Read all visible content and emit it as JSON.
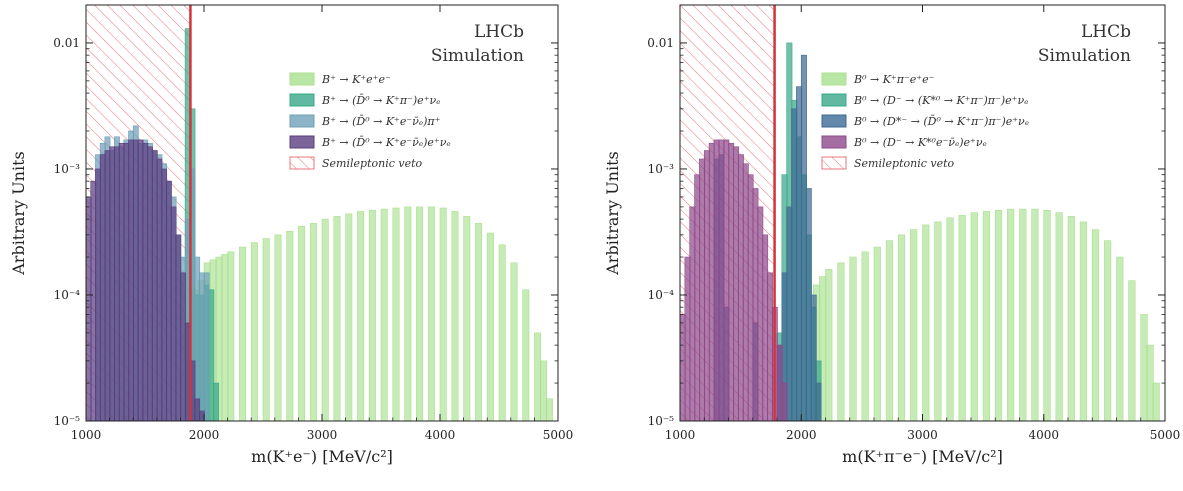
{
  "chart_data": [
    {
      "type": "bar",
      "ylabel": "Arbitrary Units",
      "xlabel": "m(K⁺e⁻) [MeV/c²]",
      "yscale": "log",
      "xlim": [
        1000,
        5000
      ],
      "ylim": [
        1e-05,
        0.02
      ],
      "grid": false,
      "legend_position": "top-right",
      "annotation_lines": [
        "LHCb",
        "Simulation"
      ],
      "xticks": [
        1000,
        2000,
        3000,
        4000,
        5000
      ],
      "yticks": [
        {
          "value": 1e-05,
          "label": "10⁻⁵"
        },
        {
          "value": 0.0001,
          "label": "10⁻⁴"
        },
        {
          "value": 0.001,
          "label": "10⁻³"
        },
        {
          "value": 0.01,
          "label": "0.01"
        }
      ],
      "veto": {
        "label": "Semileptonic veto",
        "x_range": [
          1000,
          1885
        ],
        "color": "#e8767a"
      },
      "series": [
        {
          "name": "B⁺ → K⁺e⁺e⁻",
          "color": "#a9e08f",
          "bins": [
            [
              1900,
              0.00011
            ],
            [
              1950,
              0.00013
            ],
            [
              2000,
              0.00018
            ],
            [
              2050,
              0.00019
            ],
            [
              2100,
              0.0002
            ],
            [
              2150,
              0.00021
            ],
            [
              2200,
              0.00022
            ],
            [
              2300,
              0.00024
            ],
            [
              2400,
              0.00026
            ],
            [
              2500,
              0.00028
            ],
            [
              2600,
              0.0003
            ],
            [
              2700,
              0.00032
            ],
            [
              2800,
              0.00035
            ],
            [
              2900,
              0.00037
            ],
            [
              3000,
              0.0004
            ],
            [
              3100,
              0.00042
            ],
            [
              3200,
              0.00044
            ],
            [
              3300,
              0.00046
            ],
            [
              3400,
              0.00047
            ],
            [
              3500,
              0.00048
            ],
            [
              3600,
              0.00049
            ],
            [
              3700,
              0.0005
            ],
            [
              3800,
              0.0005
            ],
            [
              3900,
              0.0005
            ],
            [
              4000,
              0.00049
            ],
            [
              4100,
              0.00046
            ],
            [
              4200,
              0.00042
            ],
            [
              4300,
              0.00037
            ],
            [
              4400,
              0.00031
            ],
            [
              4500,
              0.00025
            ],
            [
              4600,
              0.00018
            ],
            [
              4700,
              0.00011
            ],
            [
              4800,
              5e-05
            ],
            [
              4850,
              3e-05
            ],
            [
              4900,
              1.5e-05
            ]
          ]
        },
        {
          "name": "B⁺ → (D̄⁰ → K⁺π⁻)e⁺νₑ",
          "color": "#3aa889",
          "bins": [
            [
              1840,
              0.013
            ],
            [
              1880,
              0.003
            ],
            [
              1920,
              0.0001
            ],
            [
              1960,
              0.0001
            ],
            [
              2000,
              0.00012
            ],
            [
              2040,
              0.00011
            ],
            [
              2080,
              2e-05
            ]
          ]
        },
        {
          "name": "B⁺ → (D̄⁰ → K⁺e⁻ν̄ₑ)π⁺",
          "color": "#6fa0b8",
          "bins": [
            [
              1080,
              0.0013
            ],
            [
              1120,
              0.0016
            ],
            [
              1160,
              0.0018
            ],
            [
              1200,
              0.0014
            ],
            [
              1240,
              0.0018
            ],
            [
              1280,
              0.0015
            ],
            [
              1320,
              0.0017
            ],
            [
              1360,
              0.002
            ],
            [
              1400,
              0.0022
            ],
            [
              1440,
              0.0016
            ],
            [
              1480,
              0.0017
            ],
            [
              1520,
              0.0016
            ],
            [
              1560,
              0.0014
            ],
            [
              1600,
              0.0013
            ],
            [
              1640,
              0.0011
            ],
            [
              1680,
              0.0008
            ],
            [
              1720,
              0.0006
            ],
            [
              1760,
              0.0003
            ],
            [
              1800,
              0.0002
            ],
            [
              1840,
              0.0004
            ],
            [
              1880,
              0.001
            ],
            [
              1920,
              0.0002
            ],
            [
              1960,
              0.00015
            ],
            [
              2000,
              0.00015
            ]
          ]
        },
        {
          "name": "B⁺ → (D̄⁰ → K⁺e⁻ν̄ₑ)e⁺νₑ",
          "color": "#5a3f80",
          "bins": [
            [
              1000,
              0.0006
            ],
            [
              1040,
              0.0008
            ],
            [
              1080,
              0.001
            ],
            [
              1120,
              0.0013
            ],
            [
              1160,
              0.0014
            ],
            [
              1200,
              0.0015
            ],
            [
              1240,
              0.0015
            ],
            [
              1280,
              0.0016
            ],
            [
              1320,
              0.0016
            ],
            [
              1360,
              0.0017
            ],
            [
              1400,
              0.0017
            ],
            [
              1440,
              0.0017
            ],
            [
              1480,
              0.0016
            ],
            [
              1520,
              0.0015
            ],
            [
              1560,
              0.0014
            ],
            [
              1600,
              0.0012
            ],
            [
              1640,
              0.001
            ],
            [
              1680,
              0.0008
            ],
            [
              1720,
              0.0005
            ],
            [
              1760,
              0.0003
            ],
            [
              1800,
              0.00015
            ],
            [
              1840,
              6e-05
            ],
            [
              1880,
              3e-05
            ],
            [
              1920,
              1.5e-05
            ],
            [
              1960,
              1.2e-05
            ],
            [
              2000,
              1e-05
            ],
            [
              2040,
              1e-05
            ]
          ]
        }
      ]
    },
    {
      "type": "bar",
      "ylabel": "Arbitrary Units",
      "xlabel": "m(K⁺π⁻e⁻) [MeV/c²]",
      "yscale": "log",
      "xlim": [
        1000,
        5000
      ],
      "ylim": [
        1e-05,
        0.02
      ],
      "grid": false,
      "legend_position": "top-right",
      "annotation_lines": [
        "LHCb",
        "Simulation"
      ],
      "xticks": [
        1000,
        2000,
        3000,
        4000,
        5000
      ],
      "yticks": [
        {
          "value": 1e-05,
          "label": "10⁻⁵"
        },
        {
          "value": 0.0001,
          "label": "10⁻⁴"
        },
        {
          "value": 0.001,
          "label": "10⁻³"
        },
        {
          "value": 0.01,
          "label": "0.01"
        }
      ],
      "veto": {
        "label": "Semileptonic veto",
        "x_range": [
          1000,
          1780
        ],
        "color": "#e8767a"
      },
      "series": [
        {
          "name": "B⁰ → K⁺π⁻e⁺e⁻",
          "color": "#a9e08f",
          "bins": [
            [
              2100,
              0.00012
            ],
            [
              2150,
              0.00014
            ],
            [
              2200,
              0.00016
            ],
            [
              2300,
              0.00018
            ],
            [
              2400,
              0.0002
            ],
            [
              2500,
              0.00022
            ],
            [
              2600,
              0.00024
            ],
            [
              2700,
              0.00027
            ],
            [
              2800,
              0.0003
            ],
            [
              2900,
              0.00033
            ],
            [
              3000,
              0.00036
            ],
            [
              3100,
              0.00038
            ],
            [
              3200,
              0.00041
            ],
            [
              3300,
              0.00043
            ],
            [
              3400,
              0.00045
            ],
            [
              3500,
              0.00046
            ],
            [
              3600,
              0.00047
            ],
            [
              3700,
              0.00048
            ],
            [
              3800,
              0.00048
            ],
            [
              3900,
              0.00048
            ],
            [
              4000,
              0.00047
            ],
            [
              4100,
              0.00045
            ],
            [
              4200,
              0.00042
            ],
            [
              4300,
              0.00038
            ],
            [
              4400,
              0.00033
            ],
            [
              4500,
              0.00027
            ],
            [
              4600,
              0.0002
            ],
            [
              4700,
              0.00013
            ],
            [
              4800,
              7e-05
            ],
            [
              4850,
              4e-05
            ],
            [
              4900,
              2e-05
            ]
          ]
        },
        {
          "name": "B⁰ → (D⁻ → (K*⁰ → K⁺π⁻)π⁻)e⁺νₑ",
          "color": "#3aa889",
          "bins": [
            [
              1800,
              5e-05
            ],
            [
              1840,
              0.0009
            ],
            [
              1880,
              0.01
            ],
            [
              1920,
              0.0035
            ],
            [
              1960,
              0.0018
            ],
            [
              2000,
              0.0009
            ],
            [
              2040,
              0.0003
            ],
            [
              2080,
              8e-05
            ],
            [
              2120,
              3e-05
            ],
            [
              2160,
              1e-05
            ]
          ]
        },
        {
          "name": "B⁰ → (D*⁻ → (D̄⁰ → K⁺π⁻)π⁻)e⁺νₑ",
          "color": "#3d6a93",
          "bins": [
            [
              1280,
              0.0012
            ],
            [
              1320,
              0.0013
            ],
            [
              1360,
              8e-05
            ],
            [
              1600,
              6e-05
            ],
            [
              1800,
              4e-05
            ],
            [
              1840,
              0.00015
            ],
            [
              1880,
              0.0005
            ],
            [
              1920,
              0.003
            ],
            [
              1960,
              0.0045
            ],
            [
              2000,
              0.008
            ],
            [
              2040,
              0.0007
            ],
            [
              2080,
              0.0001
            ],
            [
              2120,
              2e-05
            ]
          ]
        },
        {
          "name": "B⁰ → (D⁻ → K*⁰e⁻ν̄ₑ)e⁺νₑ",
          "color": "#8f4a8b",
          "bins": [
            [
              1000,
              7e-05
            ],
            [
              1040,
              0.0002
            ],
            [
              1080,
              0.0005
            ],
            [
              1120,
              0.0009
            ],
            [
              1160,
              0.0012
            ],
            [
              1200,
              0.0014
            ],
            [
              1240,
              0.0016
            ],
            [
              1280,
              0.0017
            ],
            [
              1320,
              0.0017
            ],
            [
              1360,
              0.0017
            ],
            [
              1400,
              0.0016
            ],
            [
              1440,
              0.0015
            ],
            [
              1480,
              0.0013
            ],
            [
              1520,
              0.0011
            ],
            [
              1560,
              0.0009
            ],
            [
              1600,
              0.0007
            ],
            [
              1640,
              0.0005
            ],
            [
              1680,
              0.0003
            ],
            [
              1720,
              0.00015
            ],
            [
              1760,
              8e-05
            ],
            [
              1800,
              4e-05
            ],
            [
              1840,
              2e-05
            ]
          ]
        }
      ]
    }
  ]
}
